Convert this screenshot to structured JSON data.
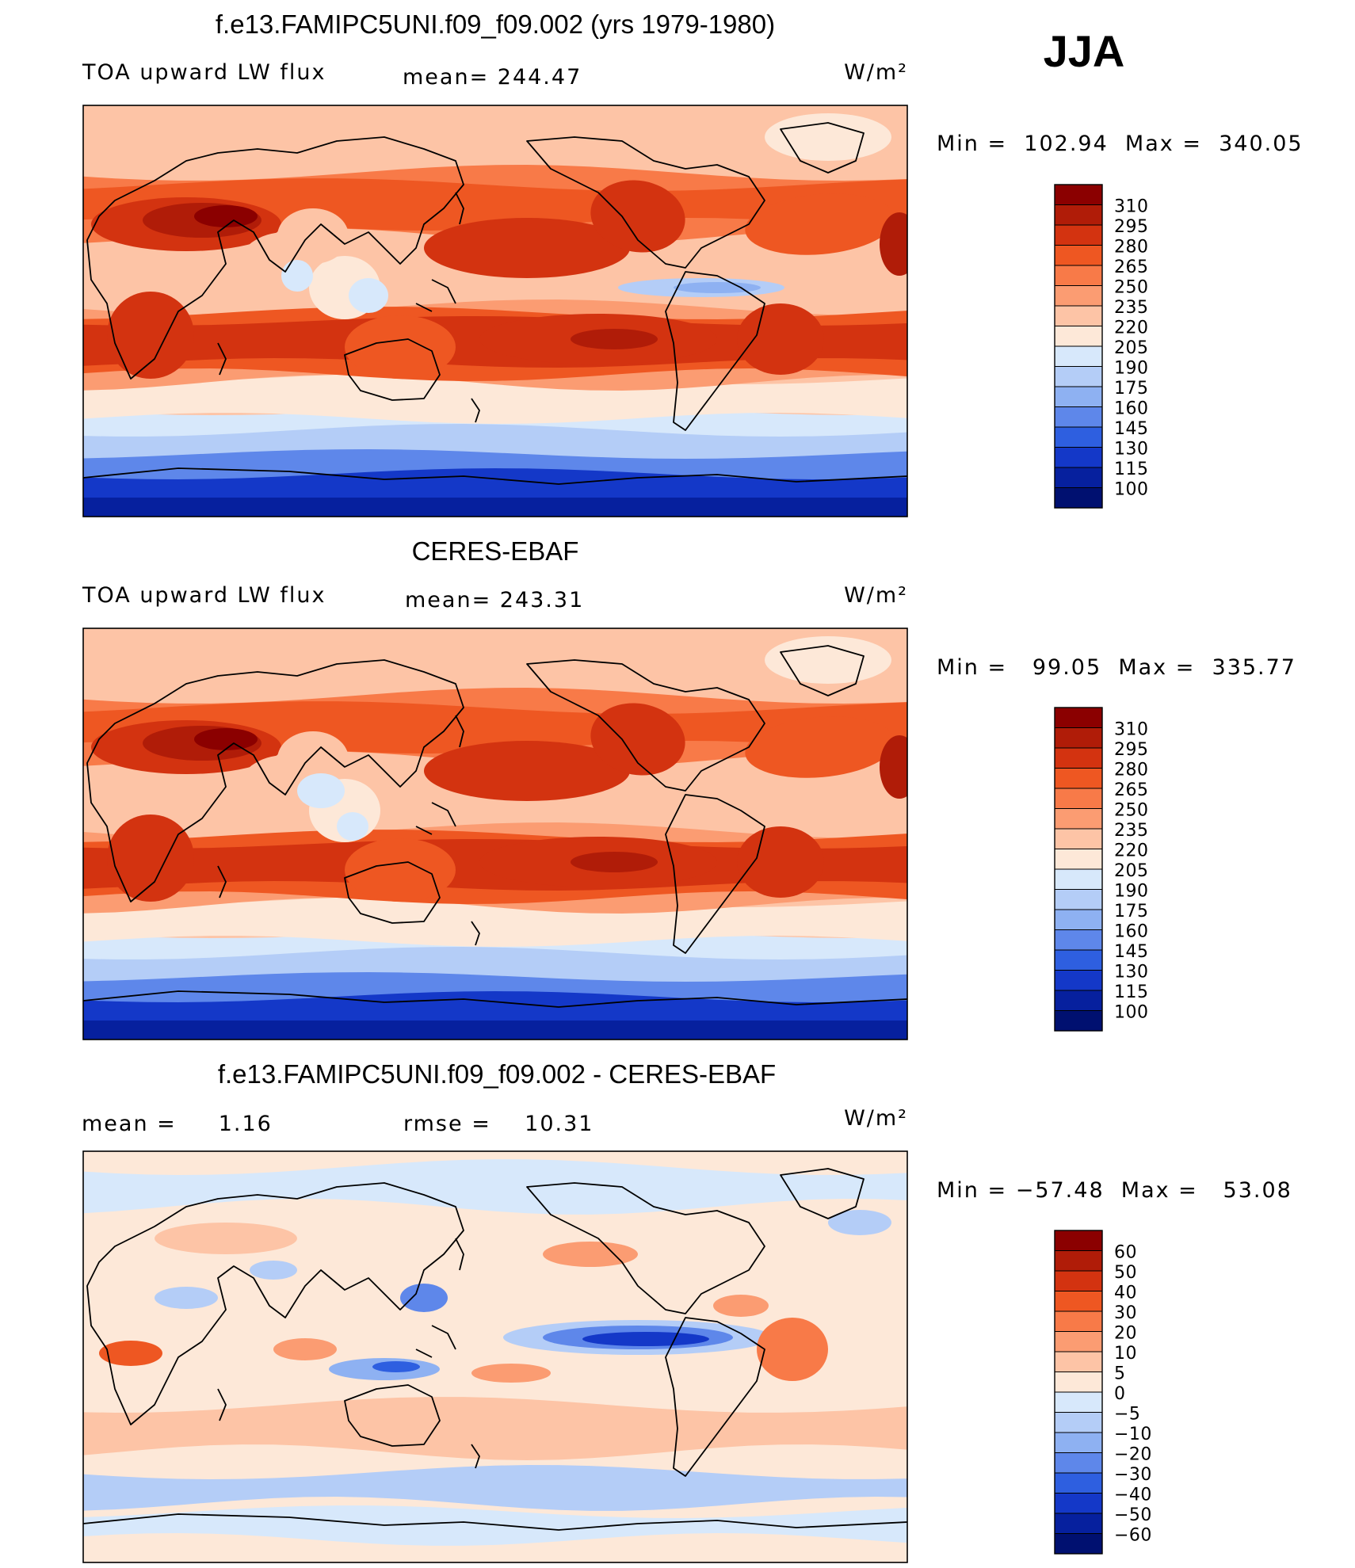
{
  "season": "JJA",
  "units": "W/m²",
  "chart_data": [
    {
      "type": "heatmap",
      "title": "f.e13.FAMIPC5UNI.f09_f09.002 (yrs 1979-1980)",
      "left_label": "TOA upward LW flux",
      "center_label": "mean= 244.47",
      "units": "W/m²",
      "stats": "Min =  102.94  Max =  340.05",
      "min": 102.94,
      "max": 340.05,
      "mean": 244.47,
      "colorbar_levels": [
        "310",
        "295",
        "280",
        "265",
        "250",
        "235",
        "220",
        "205",
        "190",
        "175",
        "160",
        "145",
        "130",
        "115",
        "100"
      ],
      "colorbar_colors": [
        "#8b0000",
        "#b01c08",
        "#d33310",
        "#ee5722",
        "#f87a48",
        "#fb9c72",
        "#fdc4a6",
        "#fde8d8",
        "#d7e8fb",
        "#b4cdf7",
        "#8eb1f2",
        "#5e87ea",
        "#2e5fe0",
        "#1438c8",
        "#06209e",
        "#001070"
      ]
    },
    {
      "type": "heatmap",
      "title": "CERES-EBAF",
      "left_label": "TOA upward LW flux",
      "center_label": "mean= 243.31",
      "units": "W/m²",
      "stats": "Min =   99.05  Max =  335.77",
      "min": 99.05,
      "max": 335.77,
      "mean": 243.31,
      "colorbar_levels": [
        "310",
        "295",
        "280",
        "265",
        "250",
        "235",
        "220",
        "205",
        "190",
        "175",
        "160",
        "145",
        "130",
        "115",
        "100"
      ],
      "colorbar_colors": [
        "#8b0000",
        "#b01c08",
        "#d33310",
        "#ee5722",
        "#f87a48",
        "#fb9c72",
        "#fdc4a6",
        "#fde8d8",
        "#d7e8fb",
        "#b4cdf7",
        "#8eb1f2",
        "#5e87ea",
        "#2e5fe0",
        "#1438c8",
        "#06209e",
        "#001070"
      ]
    },
    {
      "type": "heatmap",
      "title": "f.e13.FAMIPC5UNI.f09_f09.002 - CERES-EBAF",
      "left_label": "mean =     1.16",
      "center_label": "rmse =    10.31",
      "units": "W/m²",
      "stats": "Min = −57.48  Max =   53.08",
      "min": -57.48,
      "max": 53.08,
      "mean": 1.16,
      "rmse": 10.31,
      "colorbar_levels": [
        "60",
        "50",
        "40",
        "30",
        "20",
        "10",
        "5",
        "0",
        "−5",
        "−10",
        "−20",
        "−30",
        "−40",
        "−50",
        "−60"
      ],
      "colorbar_colors": [
        "#8b0000",
        "#b01c08",
        "#d33310",
        "#ee5722",
        "#f87a48",
        "#fb9c72",
        "#fdc4a6",
        "#fde8d8",
        "#d7e8fb",
        "#b4cdf7",
        "#8eb1f2",
        "#5e87ea",
        "#2e5fe0",
        "#1438c8",
        "#06209e",
        "#001070"
      ]
    }
  ]
}
